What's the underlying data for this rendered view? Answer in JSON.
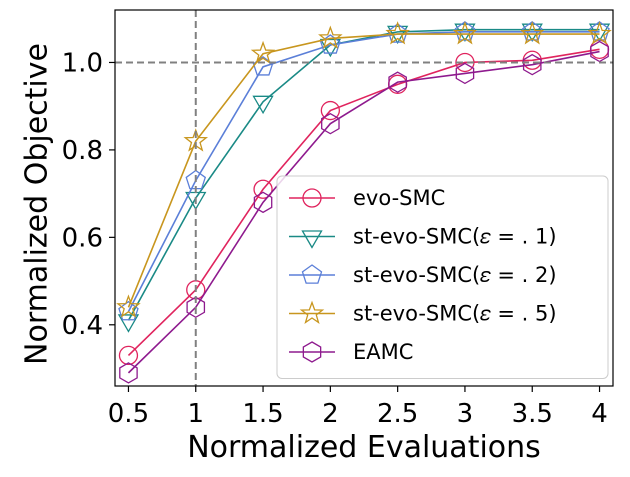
{
  "chart_data": {
    "type": "line",
    "title": "",
    "xlabel": "Normalized Evaluations",
    "ylabel": "Normalized Objective",
    "x": [
      0.5,
      1,
      1.5,
      2,
      2.5,
      3,
      3.5,
      4
    ],
    "x_tick_labels": [
      "0.5",
      "1",
      "1.5",
      "2",
      "2.5",
      "3",
      "3.5",
      "4"
    ],
    "y_ticks": [
      0.4,
      0.6,
      0.8,
      1.0
    ],
    "y_tick_labels": [
      "0.4",
      "0.6",
      "0.8",
      "1.0"
    ],
    "xlim": [
      0.4,
      4.1
    ],
    "ylim": [
      0.26,
      1.12
    ],
    "reference_lines": {
      "x": 1,
      "y": 1.0
    },
    "grid": false,
    "legend_position": "lower-right",
    "series": [
      {
        "name": "evo-SMC",
        "marker": "circle",
        "color": "#e0245e",
        "values": [
          0.33,
          0.48,
          0.71,
          0.89,
          0.95,
          1.0,
          1.005,
          1.03
        ]
      },
      {
        "name": "st-evo-SMC(ε = .1)",
        "legend_label": "st-evo-SMC(𝜀 = . 1)",
        "marker": "triangle-down",
        "color": "#1a8a86",
        "values": [
          0.41,
          0.69,
          0.91,
          1.04,
          1.07,
          1.075,
          1.075,
          1.075
        ]
      },
      {
        "name": "st-evo-SMC(ε = .2)",
        "legend_label": "st-evo-SMC(𝜀 = . 2)",
        "marker": "pentagon",
        "color": "#5b7fd8",
        "values": [
          0.43,
          0.73,
          0.99,
          1.04,
          1.065,
          1.07,
          1.07,
          1.07
        ]
      },
      {
        "name": "st-evo-SMC(ε = .5)",
        "legend_label": "st-evo-SMC(𝜀 = . 5)",
        "marker": "star",
        "color": "#c8961e",
        "values": [
          0.44,
          0.82,
          1.02,
          1.055,
          1.065,
          1.065,
          1.065,
          1.065
        ]
      },
      {
        "name": "EAMC",
        "marker": "hexagon",
        "color": "#8e1a8e",
        "values": [
          0.29,
          0.44,
          0.68,
          0.86,
          0.955,
          0.975,
          0.995,
          1.025
        ]
      }
    ]
  }
}
